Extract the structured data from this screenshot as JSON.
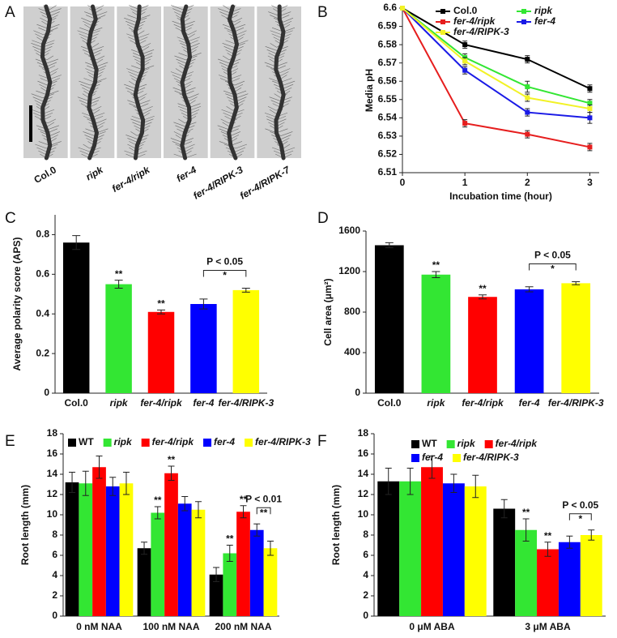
{
  "chart_data": [
    {
      "type": "image",
      "panel": "A",
      "categories": [
        "Col.0",
        "ripk",
        "fer-4/ripk",
        "fer-4",
        "fer-4/RIPK-3",
        "fer-4/RIPK-7"
      ]
    },
    {
      "type": "line",
      "panel": "B",
      "x_label": "Incubation time (hour)",
      "y_label": "Media pH",
      "x": [
        0,
        1,
        2,
        3
      ],
      "xlim": [
        0,
        3.15
      ],
      "xticks": [
        0,
        1,
        2,
        3
      ],
      "ylim": [
        6.51,
        6.6
      ],
      "yticks": [
        6.51,
        6.52,
        6.53,
        6.54,
        6.55,
        6.56,
        6.57,
        6.58,
        6.59,
        6.6
      ],
      "series": [
        {
          "name": "Col.0",
          "color": "#000000",
          "values": [
            6.6,
            6.58,
            6.572,
            6.556
          ],
          "errors": [
            0,
            0.002,
            0.002,
            0.002
          ]
        },
        {
          "name": "ripk",
          "color": "#33e633",
          "values": [
            6.6,
            6.573,
            6.557,
            6.548
          ],
          "errors": [
            0,
            0.002,
            0.003,
            0.002
          ]
        },
        {
          "name": "fer-4/ripk",
          "color": "#e61e1e",
          "values": [
            6.6,
            6.537,
            6.531,
            6.524
          ],
          "errors": [
            0,
            0.002,
            0.002,
            0.002
          ]
        },
        {
          "name": "fer-4",
          "color": "#1a1ae6",
          "values": [
            6.6,
            6.566,
            6.543,
            6.54
          ],
          "errors": [
            0,
            0.002,
            0.002,
            0.003
          ]
        },
        {
          "name": "fer-4/RIPK-3",
          "color": "#f2f226",
          "values": [
            6.6,
            6.571,
            6.551,
            6.545
          ],
          "errors": [
            0,
            0.002,
            0.002,
            0.002
          ]
        }
      ]
    },
    {
      "type": "bar",
      "panel": "C",
      "y_label": "Average polarity score (APS)",
      "categories": [
        "Col.0",
        "ripk",
        "fer-4/ripk",
        "fer-4",
        "fer-4/RIPK-3"
      ],
      "values": [
        0.76,
        0.55,
        0.41,
        0.45,
        0.52
      ],
      "errors": [
        0.035,
        0.02,
        0.01,
        0.025,
        0.01
      ],
      "colors": [
        "#000000",
        "#33e633",
        "#ff0000",
        "#0000ff",
        "#ffff00"
      ],
      "significance": [
        null,
        "**",
        "**",
        null,
        null
      ],
      "comparison": {
        "mark": "*",
        "label": "P < 0.05"
      },
      "ylim": [
        0,
        0.9
      ],
      "yticks": [
        0,
        0.2,
        0.4,
        0.6,
        0.8
      ]
    },
    {
      "type": "bar",
      "panel": "D",
      "y_label": "Cell area (μm²)",
      "categories": [
        "Col.0",
        "ripk",
        "fer-4/ripk",
        "fer-4",
        "fer-4/RIPK-3"
      ],
      "values": [
        1460,
        1170,
        950,
        1025,
        1085
      ],
      "errors": [
        25,
        30,
        20,
        25,
        15
      ],
      "colors": [
        "#000000",
        "#33e633",
        "#ff0000",
        "#0000ff",
        "#ffff00"
      ],
      "significance": [
        null,
        "**",
        "**",
        null,
        null
      ],
      "comparison": {
        "mark": "*",
        "label": "P < 0.05"
      },
      "ylim": [
        0,
        1600
      ],
      "yticks": [
        0,
        400,
        800,
        1200,
        1600
      ]
    },
    {
      "type": "bar",
      "panel": "E",
      "y_label": "Root length (mm)",
      "categories": [
        "0 nM NAA",
        "100 nM NAA",
        "200 nM NAA"
      ],
      "series": [
        {
          "name": "WT",
          "color": "#000000",
          "values": [
            13.2,
            6.7,
            4.1
          ],
          "errors": [
            1.0,
            0.6,
            0.7
          ],
          "significance": [
            null,
            null,
            null
          ]
        },
        {
          "name": "ripk",
          "color": "#33e633",
          "values": [
            13.1,
            10.2,
            6.2
          ],
          "errors": [
            1.2,
            0.6,
            0.8
          ],
          "significance": [
            null,
            "**",
            "**"
          ]
        },
        {
          "name": "fer-4/ripk",
          "color": "#ff0000",
          "values": [
            14.7,
            14.1,
            10.3
          ],
          "errors": [
            1.1,
            0.7,
            0.6
          ],
          "significance": [
            null,
            "**",
            "**"
          ]
        },
        {
          "name": "fer-4",
          "color": "#0000ff",
          "values": [
            12.8,
            11.1,
            8.5
          ],
          "errors": [
            0.9,
            0.7,
            0.6
          ],
          "significance": [
            null,
            null,
            null
          ]
        },
        {
          "name": "fer-4/RIPK-3",
          "color": "#ffff00",
          "values": [
            13.1,
            10.5,
            6.7
          ],
          "errors": [
            1.1,
            0.8,
            0.7
          ],
          "significance": [
            null,
            null,
            null
          ]
        }
      ],
      "comparison": {
        "mark": "**",
        "label": "P < 0.01"
      },
      "ylim": [
        0,
        18
      ],
      "yticks": [
        0,
        2,
        4,
        6,
        8,
        10,
        12,
        14,
        16,
        18
      ]
    },
    {
      "type": "bar",
      "panel": "F",
      "y_label": "Root length (mm)",
      "categories": [
        "0 μM ABA",
        "3 μM ABA"
      ],
      "series": [
        {
          "name": "WT",
          "color": "#000000",
          "values": [
            13.3,
            10.6
          ],
          "errors": [
            1.3,
            0.9
          ],
          "significance": [
            null,
            null
          ]
        },
        {
          "name": "ripk",
          "color": "#33e633",
          "values": [
            13.3,
            8.5
          ],
          "errors": [
            1.3,
            1.1
          ],
          "significance": [
            null,
            "**"
          ]
        },
        {
          "name": "fer-4/ripk",
          "color": "#ff0000",
          "values": [
            14.7,
            6.6
          ],
          "errors": [
            1.1,
            0.7
          ],
          "significance": [
            null,
            "**"
          ]
        },
        {
          "name": "fer-4",
          "color": "#0000ff",
          "values": [
            13.1,
            7.3
          ],
          "errors": [
            0.9,
            0.6
          ],
          "significance": [
            null,
            null
          ]
        },
        {
          "name": "fer-4/RIPK-3",
          "color": "#ffff00",
          "values": [
            12.8,
            8.0
          ],
          "errors": [
            1.1,
            0.5
          ],
          "significance": [
            null,
            null
          ]
        }
      ],
      "comparison": {
        "mark": "*",
        "label": "P < 0.05"
      },
      "ylim": [
        0,
        18
      ],
      "yticks": [
        0,
        2,
        4,
        6,
        8,
        10,
        12,
        14,
        16,
        18
      ]
    }
  ]
}
